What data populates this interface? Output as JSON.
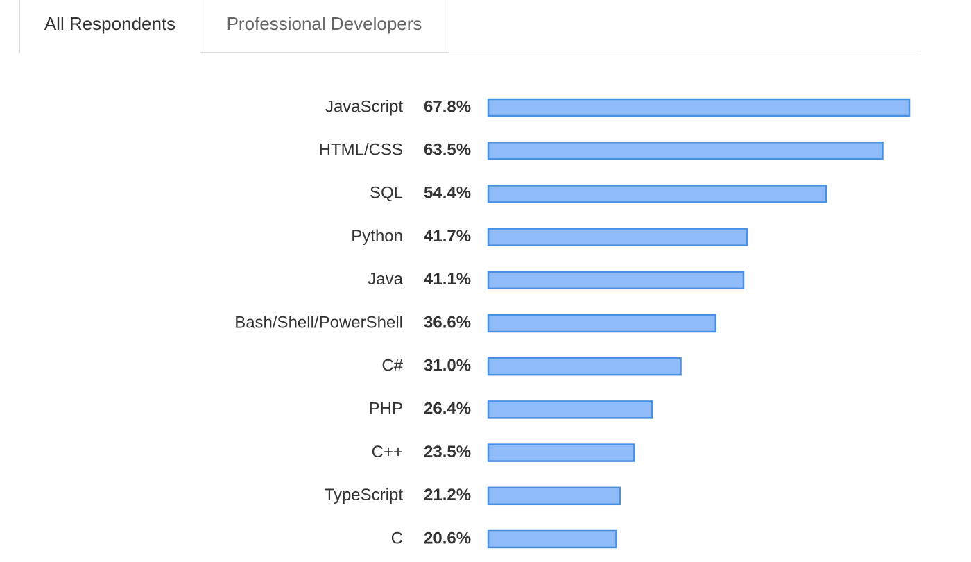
{
  "tabs": [
    "All Respondents",
    "Professional Developers"
  ],
  "chart_data": {
    "type": "bar",
    "orientation": "horizontal",
    "color": "#8fbcf8",
    "edge_color": "#4a90e2",
    "categories": [
      "JavaScript",
      "HTML/CSS",
      "SQL",
      "Python",
      "Java",
      "Bash/Shell/PowerShell",
      "C#",
      "PHP",
      "C++",
      "TypeScript",
      "C"
    ],
    "values": [
      67.8,
      63.5,
      54.4,
      41.7,
      41.1,
      36.6,
      31.0,
      26.4,
      23.5,
      21.2,
      20.6
    ],
    "value_labels": [
      "67.8%",
      "63.5%",
      "54.4%",
      "41.7%",
      "41.1%",
      "36.6%",
      "31.0%",
      "26.4%",
      "23.5%",
      "21.2%",
      "20.6%"
    ]
  }
}
